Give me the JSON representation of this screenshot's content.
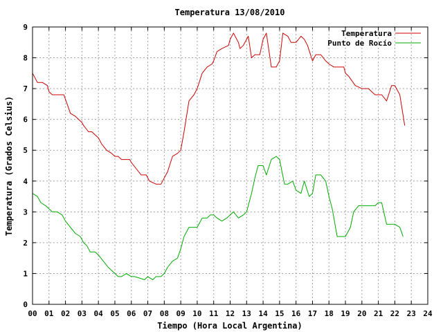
{
  "chart_data": {
    "type": "line",
    "title": "Temperatura 13/08/2010",
    "xlabel": "Tiempo (Hora Local Argentina)",
    "ylabel": "Temperatura (Grados Celsius)",
    "xlim": [
      0,
      24
    ],
    "ylim": [
      0,
      9
    ],
    "x_ticks": [
      "00",
      "01",
      "02",
      "03",
      "04",
      "05",
      "06",
      "07",
      "08",
      "09",
      "10",
      "11",
      "12",
      "13",
      "14",
      "15",
      "16",
      "17",
      "18",
      "19",
      "20",
      "21",
      "22",
      "23",
      "24"
    ],
    "y_ticks": [
      "0",
      "1",
      "2",
      "3",
      "4",
      "5",
      "6",
      "7",
      "8",
      "9"
    ],
    "grid": true,
    "legend_position": "top-right",
    "series": [
      {
        "name": "Temperatura",
        "color": "#cc0000",
        "x": [
          0.0,
          0.3,
          0.6,
          0.9,
          1.0,
          1.2,
          1.5,
          1.9,
          2.1,
          2.3,
          2.6,
          3.0,
          3.1,
          3.4,
          3.6,
          4.0,
          4.2,
          4.5,
          4.8,
          5.0,
          5.2,
          5.4,
          5.6,
          5.9,
          6.0,
          6.3,
          6.6,
          6.9,
          7.1,
          7.5,
          7.8,
          8.0,
          8.2,
          8.5,
          8.8,
          9.0,
          9.2,
          9.5,
          9.8,
          10.0,
          10.3,
          10.6,
          10.9,
          11.0,
          11.2,
          11.5,
          11.9,
          12.0,
          12.2,
          12.5,
          12.6,
          12.8,
          13.1,
          13.3,
          13.5,
          13.8,
          14.0,
          14.2,
          14.5,
          14.8,
          15.0,
          15.2,
          15.5,
          15.7,
          16.0,
          16.3,
          16.5,
          16.7,
          17.0,
          17.2,
          17.5,
          17.8,
          18.0,
          18.3,
          18.6,
          18.9,
          19.0,
          19.2,
          19.6,
          20.0,
          20.4,
          20.6,
          20.8,
          21.2,
          21.5,
          21.8,
          22.0,
          22.3,
          22.6
        ],
        "values": [
          7.5,
          7.2,
          7.2,
          7.1,
          6.9,
          6.8,
          6.8,
          6.8,
          6.5,
          6.2,
          6.1,
          5.9,
          5.8,
          5.6,
          5.6,
          5.4,
          5.2,
          5.0,
          4.9,
          4.8,
          4.8,
          4.7,
          4.7,
          4.7,
          4.6,
          4.4,
          4.2,
          4.2,
          4.0,
          3.9,
          3.9,
          4.1,
          4.3,
          4.8,
          4.9,
          5.0,
          5.6,
          6.6,
          6.8,
          7.0,
          7.5,
          7.7,
          7.8,
          7.9,
          8.2,
          8.3,
          8.4,
          8.6,
          8.8,
          8.5,
          8.3,
          8.4,
          8.7,
          8.0,
          8.1,
          8.1,
          8.6,
          8.8,
          7.7,
          7.7,
          7.9,
          8.8,
          8.7,
          8.5,
          8.5,
          8.7,
          8.6,
          8.4,
          7.9,
          8.1,
          8.1,
          7.9,
          7.8,
          7.7,
          7.7,
          7.7,
          7.5,
          7.4,
          7.1,
          7.0,
          7.0,
          6.9,
          6.8,
          6.8,
          6.6,
          7.1,
          7.1,
          6.8,
          5.8
        ]
      },
      {
        "name": "Punto de Rocío",
        "color": "#00aa00",
        "x": [
          0.0,
          0.3,
          0.5,
          0.8,
          1.0,
          1.2,
          1.5,
          1.8,
          2.0,
          2.3,
          2.6,
          2.9,
          3.1,
          3.3,
          3.5,
          3.8,
          4.0,
          4.3,
          4.6,
          4.8,
          5.0,
          5.2,
          5.4,
          5.7,
          6.0,
          6.2,
          6.5,
          6.8,
          7.0,
          7.3,
          7.5,
          7.8,
          8.0,
          8.2,
          8.5,
          8.8,
          9.0,
          9.2,
          9.5,
          9.8,
          10.0,
          10.3,
          10.6,
          10.8,
          11.0,
          11.2,
          11.5,
          11.8,
          12.0,
          12.2,
          12.5,
          12.8,
          13.0,
          13.3,
          13.5,
          13.7,
          14.0,
          14.2,
          14.5,
          14.8,
          15.0,
          15.3,
          15.5,
          15.8,
          16.0,
          16.3,
          16.5,
          16.8,
          17.0,
          17.2,
          17.5,
          17.8,
          18.0,
          18.2,
          18.5,
          18.8,
          19.0,
          19.3,
          19.5,
          19.8,
          20.0,
          20.3,
          20.5,
          20.8,
          21.0,
          21.2,
          21.5,
          21.8,
          22.0,
          22.3,
          22.5
        ],
        "values": [
          3.6,
          3.5,
          3.3,
          3.2,
          3.1,
          3.0,
          3.0,
          2.9,
          2.7,
          2.5,
          2.3,
          2.2,
          2.0,
          1.9,
          1.7,
          1.7,
          1.6,
          1.4,
          1.2,
          1.1,
          1.0,
          0.9,
          0.9,
          1.0,
          0.9,
          0.9,
          0.85,
          0.8,
          0.9,
          0.8,
          0.9,
          0.9,
          1.0,
          1.2,
          1.4,
          1.5,
          1.8,
          2.2,
          2.5,
          2.5,
          2.5,
          2.8,
          2.8,
          2.9,
          2.9,
          2.8,
          2.7,
          2.8,
          2.9,
          3.0,
          2.8,
          2.9,
          3.0,
          3.6,
          4.1,
          4.5,
          4.5,
          4.2,
          4.7,
          4.8,
          4.7,
          3.9,
          3.9,
          4.0,
          3.7,
          3.6,
          4.0,
          3.5,
          3.6,
          4.2,
          4.2,
          4.0,
          3.5,
          3.1,
          2.2,
          2.2,
          2.2,
          2.5,
          3.0,
          3.2,
          3.2,
          3.2,
          3.2,
          3.2,
          3.3,
          3.3,
          2.6,
          2.6,
          2.6,
          2.5,
          2.2
        ]
      }
    ]
  }
}
